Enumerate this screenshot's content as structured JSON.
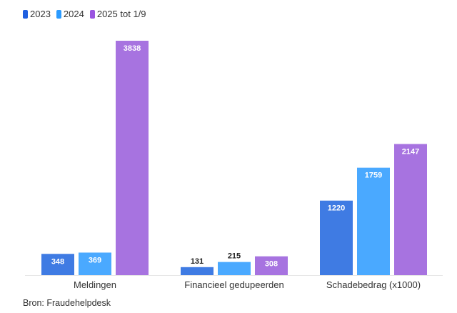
{
  "chart_data": {
    "type": "bar",
    "title": "",
    "xlabel": "",
    "ylabel": "",
    "categories": [
      "Meldingen",
      "Financieel gedupeerden",
      "Schadebedrag (x1000)"
    ],
    "series": [
      {
        "name": "2023",
        "color": "#3f7be3",
        "values": [
          348,
          131,
          1220
        ]
      },
      {
        "name": "2024",
        "color": "#4aa9ff",
        "values": [
          369,
          215,
          1759
        ]
      },
      {
        "name": "2025 tot 1/9",
        "color": "#a773e0",
        "values": [
          3838,
          308,
          2147
        ]
      }
    ],
    "ylim": [
      0,
      3838
    ],
    "grid": false,
    "legend_position": "top-left"
  },
  "source": "Bron: Fraudehelpdesk"
}
